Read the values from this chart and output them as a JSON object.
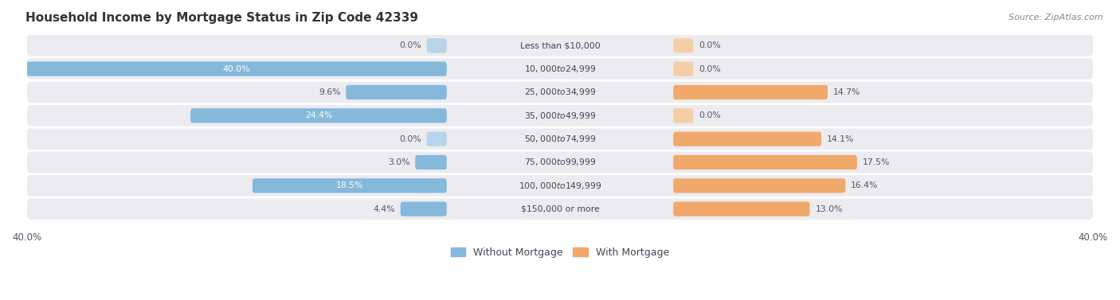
{
  "title": "Household Income by Mortgage Status in Zip Code 42339",
  "source": "Source: ZipAtlas.com",
  "categories": [
    "Less than $10,000",
    "$10,000 to $24,999",
    "$25,000 to $34,999",
    "$35,000 to $49,999",
    "$50,000 to $74,999",
    "$75,000 to $99,999",
    "$100,000 to $149,999",
    "$150,000 or more"
  ],
  "without_mortgage": [
    0.0,
    40.0,
    9.6,
    24.4,
    0.0,
    3.0,
    18.5,
    4.4
  ],
  "with_mortgage": [
    0.0,
    0.0,
    14.7,
    0.0,
    14.1,
    17.5,
    16.4,
    13.0
  ],
  "max_val": 40.0,
  "blue_color": "#85b8db",
  "blue_stub_color": "#b8d4e8",
  "orange_color": "#f0a96a",
  "orange_stub_color": "#f5cfa4",
  "bg_row_color": "#ebebf0",
  "title_color": "#333333",
  "label_color": "#555566",
  "figsize": [
    14.06,
    3.77
  ],
  "dpi": 100
}
